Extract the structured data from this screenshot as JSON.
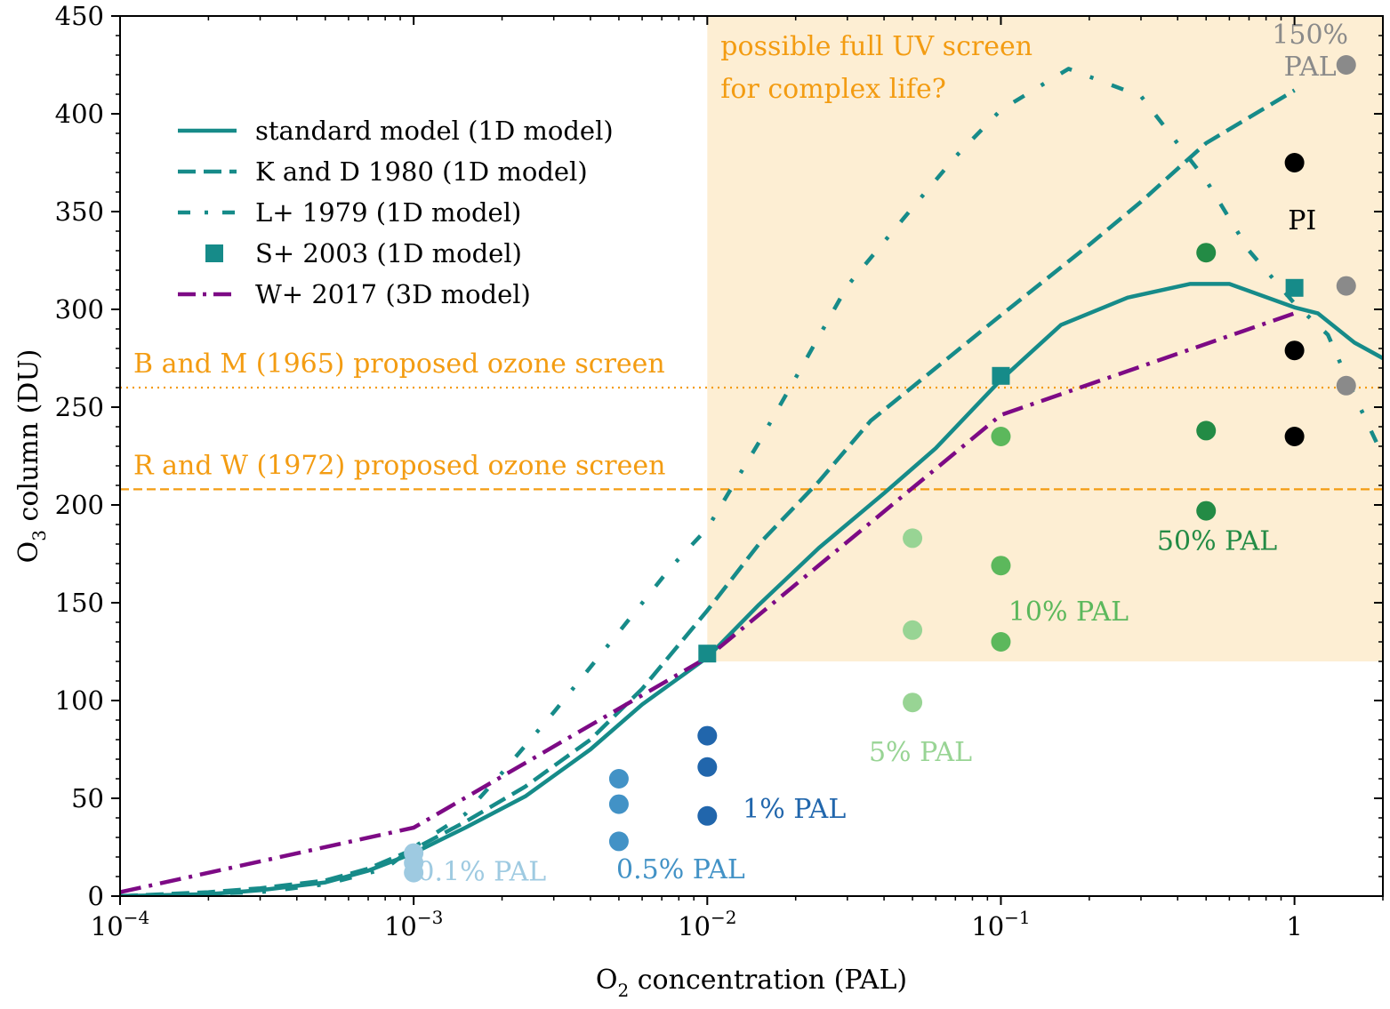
{
  "chart_data": {
    "type": "line",
    "xlabel_main": "O",
    "xlabel_sub": "2",
    "xlabel_rest": " concentration (PAL)",
    "ylabel_main": "O",
    "ylabel_sub": "3",
    "ylabel_rest": " column (DU)",
    "x_scale": "log",
    "xlim": [
      0.0001,
      2
    ],
    "ylim": [
      0,
      450
    ],
    "x_ticks": [
      {
        "value": 0.0001,
        "base": "10",
        "exp": "−4"
      },
      {
        "value": 0.001,
        "base": "10",
        "exp": "−3"
      },
      {
        "value": 0.01,
        "base": "10",
        "exp": "−2"
      },
      {
        "value": 0.1,
        "base": "10",
        "exp": "−1"
      },
      {
        "value": 1,
        "base": "1",
        "exp": ""
      }
    ],
    "y_ticks": [
      {
        "value": 0,
        "label": "0"
      },
      {
        "value": 50,
        "label": "50"
      },
      {
        "value": 100,
        "label": "100"
      },
      {
        "value": 150,
        "label": "150"
      },
      {
        "value": 200,
        "label": "200"
      },
      {
        "value": 250,
        "label": "250"
      },
      {
        "value": 300,
        "label": "300"
      },
      {
        "value": 350,
        "label": "350"
      },
      {
        "value": 400,
        "label": "400"
      },
      {
        "value": 450,
        "label": "450"
      }
    ],
    "grid": false,
    "legend_position": "upper-left",
    "shaded_region": {
      "x_from": 0.01,
      "x_to": 2,
      "y_from": 120,
      "y_to": 450,
      "color": "#fdeed3",
      "label_lines": [
        "possible full UV screen",
        "for complex life?"
      ],
      "label_color": "#f39c12"
    },
    "horizontal_lines": [
      {
        "y": 260,
        "style": "dotted",
        "color": "#f39c12",
        "label": "B and M (1965) proposed ozone screen"
      },
      {
        "y": 208,
        "style": "dashed",
        "color": "#f39c12",
        "label": "R and W (1972) proposed ozone screen"
      }
    ],
    "series": [
      {
        "name": "standard model (1D model)",
        "style": "solid",
        "color": "#168b89",
        "x": [
          0.0001,
          0.0002,
          0.0003,
          0.0005,
          0.0007,
          0.001,
          0.0015,
          0.0024,
          0.004,
          0.006,
          0.01,
          0.015,
          0.024,
          0.04,
          0.06,
          0.1,
          0.16,
          0.27,
          0.44,
          0.6,
          1.0,
          1.2,
          1.6,
          2.0
        ],
        "y": [
          0,
          1,
          3,
          7,
          13,
          22,
          35,
          51,
          75,
          98,
          122,
          149,
          178,
          206,
          229,
          264,
          292,
          306,
          313,
          313,
          301,
          298,
          283,
          275
        ]
      },
      {
        "name": "K and D 1980 (1D model)",
        "style": "dashed",
        "color": "#168b89",
        "x": [
          0.0001,
          0.0002,
          0.0003,
          0.0005,
          0.0007,
          0.001,
          0.0015,
          0.0024,
          0.004,
          0.006,
          0.01,
          0.015,
          0.024,
          0.036,
          0.06,
          0.1,
          0.2,
          0.3,
          0.5,
          1.0
        ],
        "y": [
          0,
          2,
          4,
          8,
          14,
          24,
          38,
          56,
          80,
          106,
          146,
          180,
          212,
          243,
          270,
          297,
          333,
          355,
          385,
          412
        ]
      },
      {
        "name": "L+ 1979 (1D model)",
        "style": "dashdotdotted",
        "color": "#168b89",
        "x": [
          0.0001,
          0.0003,
          0.0005,
          0.0008,
          0.001,
          0.0015,
          0.002,
          0.003,
          0.005,
          0.0075,
          0.01,
          0.015,
          0.02,
          0.03,
          0.05,
          0.07,
          0.1,
          0.17,
          0.3,
          0.5,
          0.7,
          1.0,
          1.3,
          1.6,
          2.0
        ],
        "y": [
          0,
          2,
          6,
          14,
          25,
          42,
          63,
          94,
          135,
          168,
          188,
          232,
          265,
          312,
          352,
          378,
          402,
          423,
          409,
          366,
          330,
          303,
          287,
          256,
          225
        ]
      },
      {
        "name": "S+ 2003 (1D model)",
        "style": "marker",
        "color": "#168b89",
        "x": [
          0.01,
          0.1,
          1.0
        ],
        "y": [
          124,
          266,
          311
        ]
      },
      {
        "name": "W+ 2017 (3D model)",
        "style": "dashdot",
        "color": "#7d0a85",
        "x": [
          0.0001,
          0.001,
          0.01,
          0.1,
          1.0
        ],
        "y": [
          2,
          35,
          122,
          246,
          298
        ]
      }
    ],
    "point_groups": [
      {
        "label": "0.1% PAL",
        "color": "#9ecae1",
        "x": 0.001,
        "y": [
          12,
          17,
          22
        ],
        "label_x": 0.00103,
        "label_y": 8
      },
      {
        "label": "0.5% PAL",
        "color": "#4292c6",
        "x": 0.005,
        "y": [
          28,
          47,
          60
        ],
        "label_x": 0.0049,
        "label_y": 9
      },
      {
        "label": "1% PAL",
        "color": "#2166ac",
        "x": 0.01,
        "y": [
          41,
          66,
          82
        ],
        "label_x": 0.0132,
        "label_y": 40
      },
      {
        "label": "5% PAL",
        "color": "#98d494",
        "x": 0.05,
        "y": [
          99,
          136,
          183
        ],
        "label_x": 0.0355,
        "label_y": 69
      },
      {
        "label": "10% PAL",
        "color": "#5cb85c",
        "x": 0.1,
        "y": [
          130,
          169,
          235
        ],
        "label_x": 0.106,
        "label_y": 141
      },
      {
        "label": "50% PAL",
        "color": "#238b45",
        "x": 0.5,
        "y": [
          197,
          238,
          329
        ],
        "label_x": 0.34,
        "label_y": 177
      },
      {
        "label": "PI",
        "color": "#000000",
        "x": 1.0,
        "y": [
          235,
          279,
          375
        ],
        "label_x": 0.95,
        "label_y": 341
      },
      {
        "label_lines": [
          "150%",
          "PAL"
        ],
        "color": "#8a8a8a",
        "x": 1.5,
        "y": [
          261,
          312,
          425
        ],
        "label_x": 0.82,
        "label_y": 436
      }
    ]
  }
}
